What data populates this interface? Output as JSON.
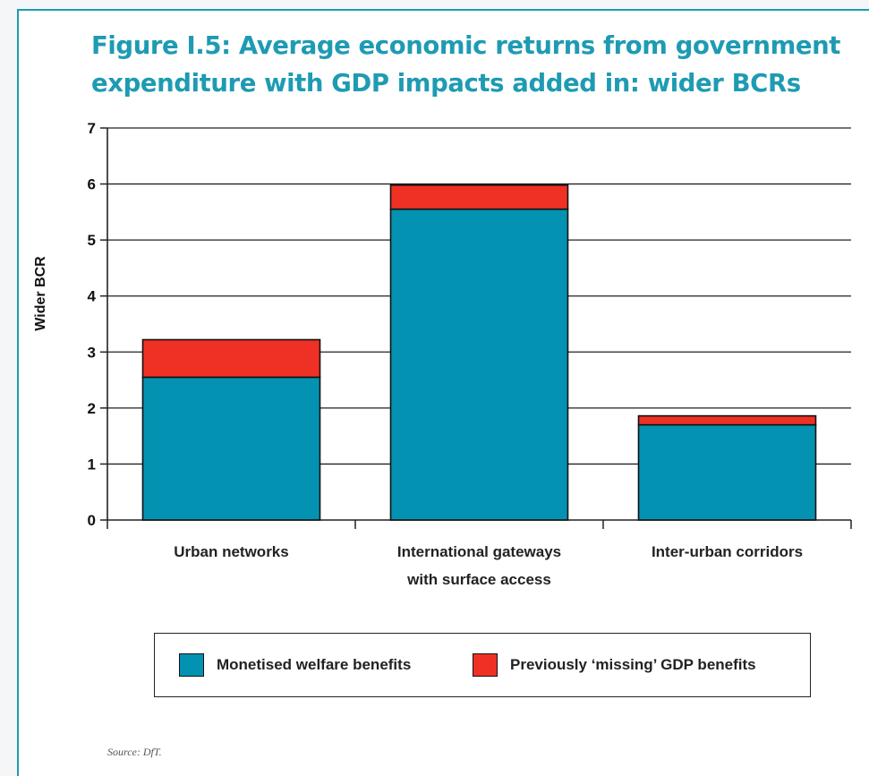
{
  "title_line1": "Figure I.5: Average economic returns from government",
  "title_line2": "expenditure with GDP impacts added in: wider BCRs",
  "source": "Source: DfT.",
  "colors": {
    "frame": "#1e9bb3",
    "welfare": "#0392b1",
    "gdp": "#ee3124"
  },
  "chart_data": {
    "type": "bar",
    "stacked": true,
    "title": "Figure I.5: Average economic returns from government expenditure with GDP impacts added in: wider BCRs",
    "ylabel": "Wider BCR",
    "xlabel": "",
    "ylim": [
      0,
      7
    ],
    "yticks": [
      "0",
      "1",
      "2",
      "3",
      "4",
      "5",
      "6",
      "7"
    ],
    "grid": true,
    "legend_position": "bottom",
    "categories": [
      [
        "Urban networks"
      ],
      [
        "International gateways",
        "with surface access"
      ],
      [
        "Inter-urban corridors"
      ]
    ],
    "series": [
      {
        "name": "Monetised welfare benefits",
        "values": [
          2.55,
          5.55,
          1.7
        ]
      },
      {
        "name": "Previously ‘missing’ GDP benefits",
        "values": [
          0.67,
          0.43,
          0.16
        ]
      }
    ]
  }
}
